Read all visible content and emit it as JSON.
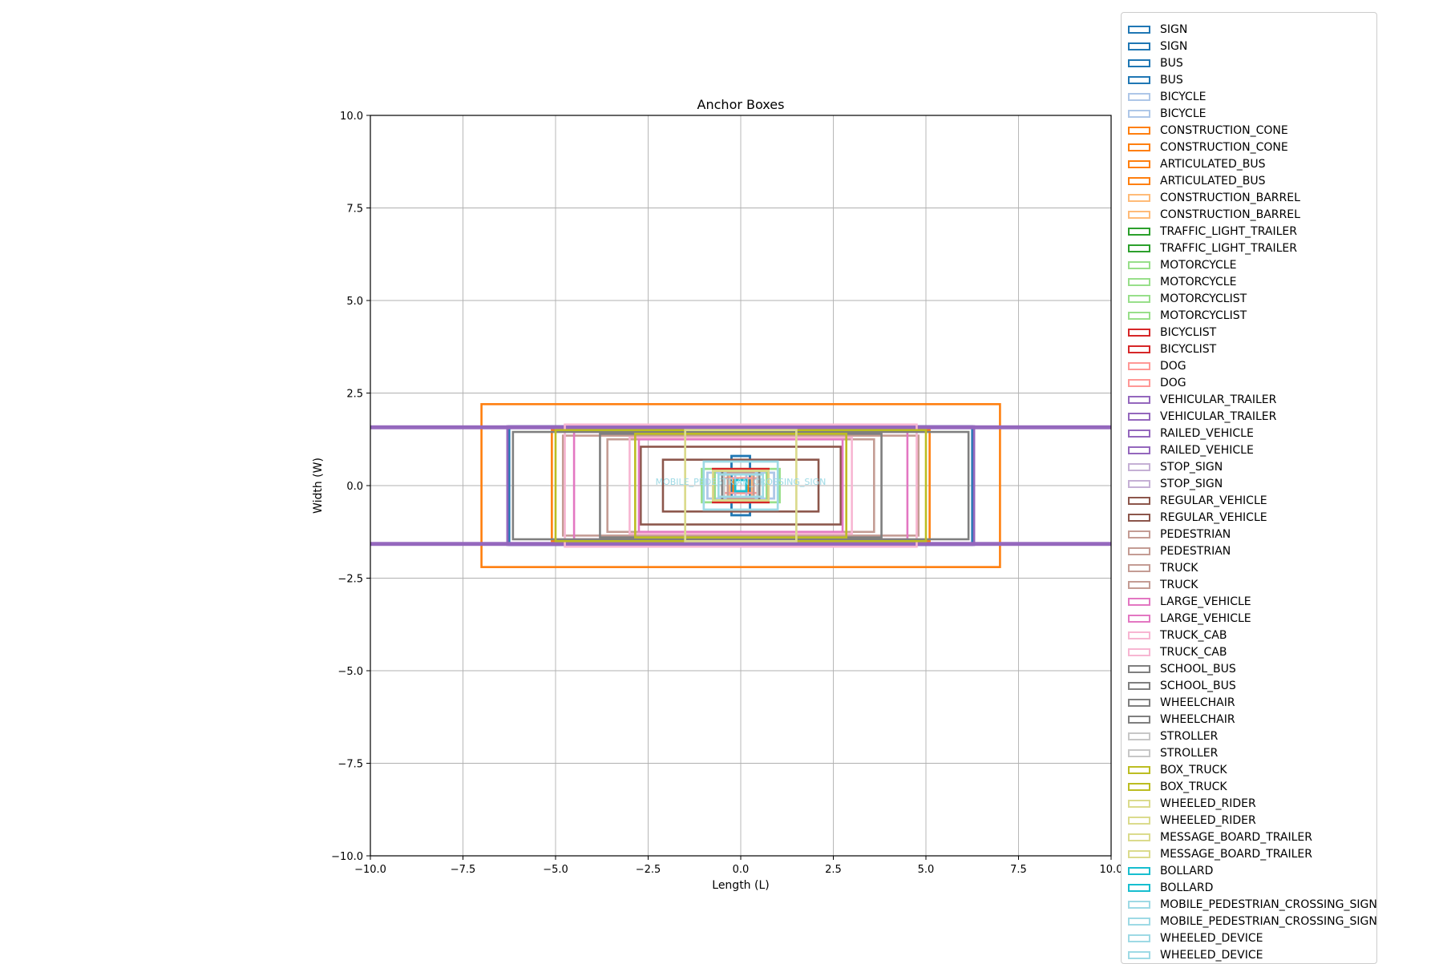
{
  "chart_data": {
    "type": "rectangles",
    "title": "Anchor Boxes",
    "xlabel": "Length (L)",
    "ylabel": "Width (W)",
    "xlim": [
      -10,
      10
    ],
    "ylim": [
      -10,
      10
    ],
    "xticks": [
      "−10.0",
      "−7.5",
      "−5.0",
      "−2.5",
      "0.0",
      "2.5",
      "5.0",
      "7.5",
      "10.0"
    ],
    "yticks": [
      "10.0",
      "7.5",
      "5.0",
      "2.5",
      "0.0",
      "−2.5",
      "−5.0",
      "−7.5",
      "−10.0"
    ],
    "xtick_values": [
      -10,
      -7.5,
      -5,
      -2.5,
      0,
      2.5,
      5,
      7.5,
      10
    ],
    "ytick_values": [
      10,
      7.5,
      5,
      2.5,
      0,
      -2.5,
      -5,
      -7.5,
      -10
    ],
    "grid": true,
    "legend_placement": "right, outside axes",
    "center_text": "MOBILE_PEDESTRIAN_CROSSING_SIGN",
    "boxes": [
      {
        "label": "SIGN",
        "color": "#1f77b4",
        "length": 0.5,
        "width": 1.6
      },
      {
        "label": "SIGN",
        "color": "#1f77b4",
        "length": 0.5,
        "width": 1.6
      },
      {
        "label": "BUS",
        "color": "#1f77b4",
        "length": 12.5,
        "width": 3.2
      },
      {
        "label": "BUS",
        "color": "#1f77b4",
        "length": 12.5,
        "width": 3.2
      },
      {
        "label": "BICYCLE",
        "color": "#aec7e8",
        "length": 1.8,
        "width": 0.7
      },
      {
        "label": "BICYCLE",
        "color": "#aec7e8",
        "length": 1.8,
        "width": 0.7
      },
      {
        "label": "CONSTRUCTION_CONE",
        "color": "#ff7f0e",
        "length": 0.4,
        "width": 0.4
      },
      {
        "label": "CONSTRUCTION_CONE",
        "color": "#ff7f0e",
        "length": 0.4,
        "width": 0.4
      },
      {
        "label": "ARTICULATED_BUS",
        "color": "#ff7f0e",
        "length": 14.0,
        "width": 4.4
      },
      {
        "label": "ARTICULATED_BUS",
        "color": "#ff7f0e",
        "length": 10.2,
        "width": 3.0
      },
      {
        "label": "CONSTRUCTION_BARREL",
        "color": "#ffbb78",
        "length": 0.6,
        "width": 0.6
      },
      {
        "label": "CONSTRUCTION_BARREL",
        "color": "#ffbb78",
        "length": 0.6,
        "width": 0.6
      },
      {
        "label": "TRAFFIC_LIGHT_TRAILER",
        "color": "#2ca02c",
        "length": 1.0,
        "width": 0.6
      },
      {
        "label": "TRAFFIC_LIGHT_TRAILER",
        "color": "#2ca02c",
        "length": 1.0,
        "width": 0.6
      },
      {
        "label": "MOTORCYCLE",
        "color": "#98df8a",
        "length": 2.1,
        "width": 0.9
      },
      {
        "label": "MOTORCYCLE",
        "color": "#98df8a",
        "length": 2.1,
        "width": 0.9
      },
      {
        "label": "MOTORCYCLIST",
        "color": "#98df8a",
        "length": 1.4,
        "width": 0.8
      },
      {
        "label": "MOTORCYCLIST",
        "color": "#98df8a",
        "length": 1.4,
        "width": 0.8
      },
      {
        "label": "BICYCLIST",
        "color": "#d62728",
        "length": 1.5,
        "width": 0.9
      },
      {
        "label": "BICYCLIST",
        "color": "#d62728",
        "length": 1.5,
        "width": 0.9
      },
      {
        "label": "DOG",
        "color": "#ff9896",
        "length": 0.9,
        "width": 0.4
      },
      {
        "label": "DOG",
        "color": "#ff9896",
        "length": 0.9,
        "width": 0.4
      },
      {
        "label": "VEHICULAR_TRAILER",
        "color": "#9467bd",
        "length": 12.6,
        "width": 3.2
      },
      {
        "label": "VEHICULAR_TRAILER",
        "color": "#9467bd",
        "length": 12.6,
        "width": 3.2
      },
      {
        "label": "RAILED_VEHICLE",
        "color": "#9467bd",
        "length": 30.0,
        "width": 3.2
      },
      {
        "label": "RAILED_VEHICLE",
        "color": "#9467bd",
        "length": 30.0,
        "width": 3.1
      },
      {
        "label": "STOP_SIGN",
        "color": "#c5b0d5",
        "length": 0.3,
        "width": 0.7
      },
      {
        "label": "STOP_SIGN",
        "color": "#c5b0d5",
        "length": 0.3,
        "width": 0.7
      },
      {
        "label": "REGULAR_VEHICLE",
        "color": "#8c564b",
        "length": 5.4,
        "width": 2.1
      },
      {
        "label": "REGULAR_VEHICLE",
        "color": "#8c564b",
        "length": 4.2,
        "width": 1.4
      },
      {
        "label": "PEDESTRIAN",
        "color": "#c49c94",
        "length": 0.7,
        "width": 0.7
      },
      {
        "label": "PEDESTRIAN",
        "color": "#c49c94",
        "length": 0.7,
        "width": 0.7
      },
      {
        "label": "TRUCK",
        "color": "#c49c94",
        "length": 9.6,
        "width": 2.7
      },
      {
        "label": "TRUCK",
        "color": "#c49c94",
        "length": 7.2,
        "width": 2.5
      },
      {
        "label": "LARGE_VEHICLE",
        "color": "#e377c2",
        "length": 5.5,
        "width": 2.5
      },
      {
        "label": "LARGE_VEHICLE",
        "color": "#e377c2",
        "length": 9.0,
        "width": 2.9
      },
      {
        "label": "TRUCK_CAB",
        "color": "#f7b6d2",
        "length": 9.5,
        "width": 3.3
      },
      {
        "label": "TRUCK_CAB",
        "color": "#f7b6d2",
        "length": 6.0,
        "width": 2.6
      },
      {
        "label": "SCHOOL_BUS",
        "color": "#7f7f7f",
        "length": 12.3,
        "width": 2.9
      },
      {
        "label": "SCHOOL_BUS",
        "color": "#7f7f7f",
        "length": 7.6,
        "width": 2.8
      },
      {
        "label": "WHEELCHAIR",
        "color": "#7f7f7f",
        "length": 1.0,
        "width": 0.8
      },
      {
        "label": "WHEELCHAIR",
        "color": "#7f7f7f",
        "length": 1.0,
        "width": 0.8
      },
      {
        "label": "STROLLER",
        "color": "#c7c7c7",
        "length": 0.9,
        "width": 0.6
      },
      {
        "label": "STROLLER",
        "color": "#c7c7c7",
        "length": 0.9,
        "width": 0.6
      },
      {
        "label": "BOX_TRUCK",
        "color": "#bcbd22",
        "length": 10.0,
        "width": 3.0
      },
      {
        "label": "BOX_TRUCK",
        "color": "#bcbd22",
        "length": 5.7,
        "width": 2.8
      },
      {
        "label": "WHEELED_RIDER",
        "color": "#dbdb8d",
        "length": 1.5,
        "width": 0.8
      },
      {
        "label": "WHEELED_RIDER",
        "color": "#dbdb8d",
        "length": 1.5,
        "width": 0.8
      },
      {
        "label": "MESSAGE_BOARD_TRAILER",
        "color": "#dbdb8d",
        "length": 3.0,
        "width": 3.0
      },
      {
        "label": "MESSAGE_BOARD_TRAILER",
        "color": "#dbdb8d",
        "length": 3.0,
        "width": 3.0
      },
      {
        "label": "BOLLARD",
        "color": "#17becf",
        "length": 0.3,
        "width": 0.3
      },
      {
        "label": "BOLLARD",
        "color": "#17becf",
        "length": 0.3,
        "width": 0.3
      },
      {
        "label": "MOBILE_PEDESTRIAN_CROSSING_SIGN",
        "color": "#9edae5",
        "length": 2.0,
        "width": 1.3
      },
      {
        "label": "MOBILE_PEDESTRIAN_CROSSING_SIGN",
        "color": "#9edae5",
        "length": 2.0,
        "width": 1.3
      },
      {
        "label": "WHEELED_DEVICE",
        "color": "#9edae5",
        "length": 1.2,
        "width": 0.6
      },
      {
        "label": "WHEELED_DEVICE",
        "color": "#9edae5",
        "length": 1.2,
        "width": 0.6
      }
    ]
  }
}
